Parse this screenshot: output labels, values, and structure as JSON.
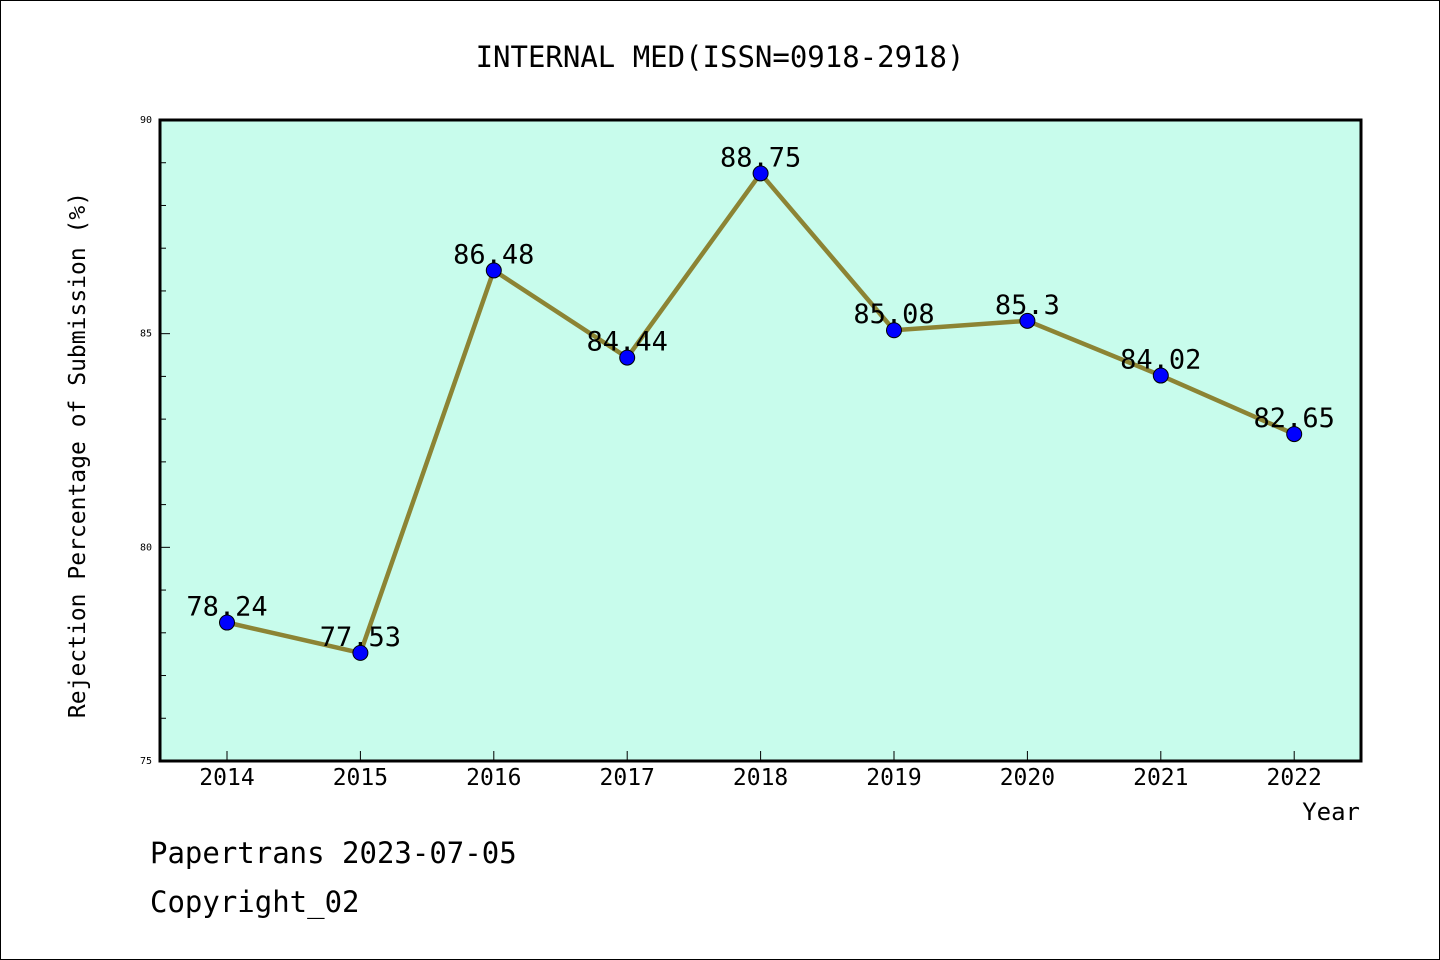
{
  "chart_data": {
    "type": "line",
    "title": "INTERNAL MED(ISSN=0918-2918)",
    "xlabel": "Year",
    "ylabel": "Rejection Percentage of Submission (%)",
    "categories": [
      "2014",
      "2015",
      "2016",
      "2017",
      "2018",
      "2019",
      "2020",
      "2021",
      "2022"
    ],
    "series": [
      {
        "values": [
          78.24,
          77.53,
          86.48,
          84.44,
          88.75,
          85.08,
          85.3,
          84.02,
          82.65
        ],
        "labels": [
          "78.24",
          "77.53",
          "86.48",
          "84.44",
          "88.75",
          "85.08",
          "85.3",
          "84.02",
          "82.65"
        ]
      }
    ],
    "ylim": [
      75,
      90
    ],
    "yticks": [
      "75",
      "80",
      "85",
      "90"
    ],
    "grid": false,
    "colors": {
      "plot_background": "#c8fcec",
      "line": "#8c8434",
      "marker": "#0000ff"
    }
  },
  "footer": {
    "line1": "Papertrans 2023-07-05",
    "line2": "Copyright_02"
  }
}
